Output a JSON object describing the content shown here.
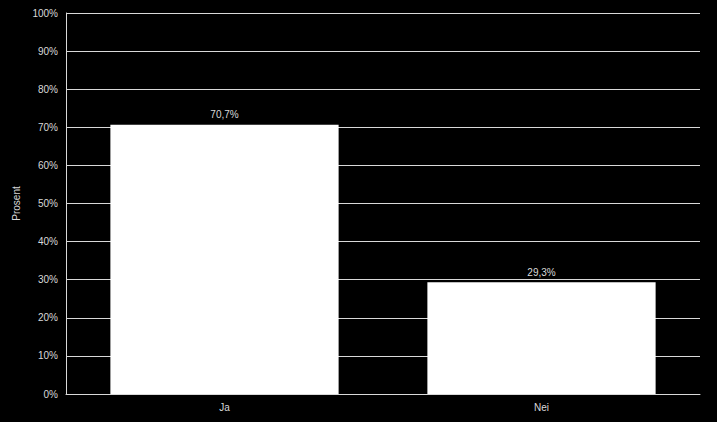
{
  "chart_data": {
    "type": "bar",
    "categories": [
      "Ja",
      "Nei"
    ],
    "values": [
      70.7,
      29.3
    ],
    "value_labels": [
      "70,7%",
      "29,3%"
    ],
    "data_labels": true,
    "color": "#ffffff",
    "y_label": "Prosent",
    "ylim": [
      0,
      100
    ],
    "yticks": [
      {
        "value": 0,
        "label": "0%"
      },
      {
        "value": 10,
        "label": "10%"
      },
      {
        "value": 20,
        "label": "20%"
      },
      {
        "value": 30,
        "label": "30%"
      },
      {
        "value": 40,
        "label": "40%"
      },
      {
        "value": 50,
        "label": "50%"
      },
      {
        "value": 60,
        "label": "60%"
      },
      {
        "value": 70,
        "label": "70%"
      },
      {
        "value": 80,
        "label": "80%"
      },
      {
        "value": 90,
        "label": "90%"
      },
      {
        "value": 100,
        "label": "100%"
      }
    ],
    "grid": true
  }
}
